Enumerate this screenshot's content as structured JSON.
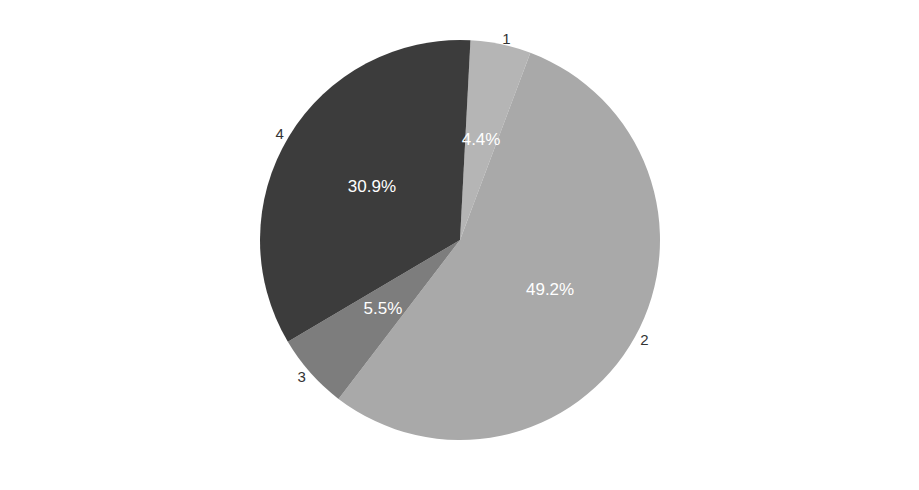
{
  "chart_data": {
    "type": "pie",
    "categories": [
      "1",
      "2",
      "3",
      "4"
    ],
    "values": [
      4.4,
      49.2,
      5.5,
      30.9
    ],
    "value_labels": [
      "4.4%",
      "49.2%",
      "5.5%",
      "30.9%"
    ],
    "colors": [
      "#b5b5b5",
      "#a9a9a9",
      "#7d7d7d",
      "#3c3c3c"
    ],
    "data_labels": true
  }
}
